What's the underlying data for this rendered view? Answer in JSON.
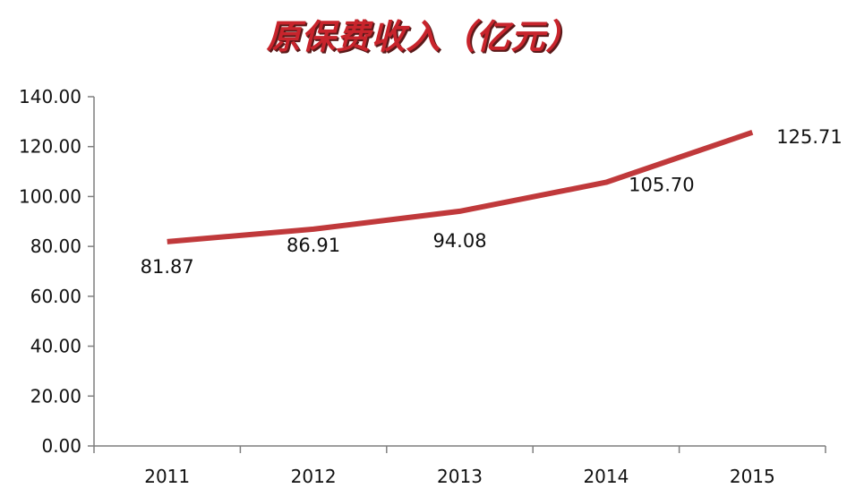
{
  "chart_data": {
    "type": "line",
    "title": "原保费收入（亿元）",
    "xlabel": "",
    "ylabel": "",
    "categories": [
      "2011",
      "2012",
      "2013",
      "2014",
      "2015"
    ],
    "series": [
      {
        "values": [
          81.87,
          86.91,
          94.08,
          105.7,
          125.71
        ]
      }
    ],
    "data_labels": [
      "81.87",
      "86.91",
      "94.08",
      "105.70",
      "125.71"
    ],
    "ylim": [
      0,
      140
    ],
    "y_ticks": [
      "0.00",
      "20.00",
      "40.00",
      "60.00",
      "80.00",
      "100.00",
      "120.00",
      "140.00"
    ],
    "grid": false,
    "legend": "none",
    "colors": {
      "line": "#c0393b",
      "title": "#c8242c",
      "axis": "#7f7f7f",
      "text": "#111111"
    }
  }
}
